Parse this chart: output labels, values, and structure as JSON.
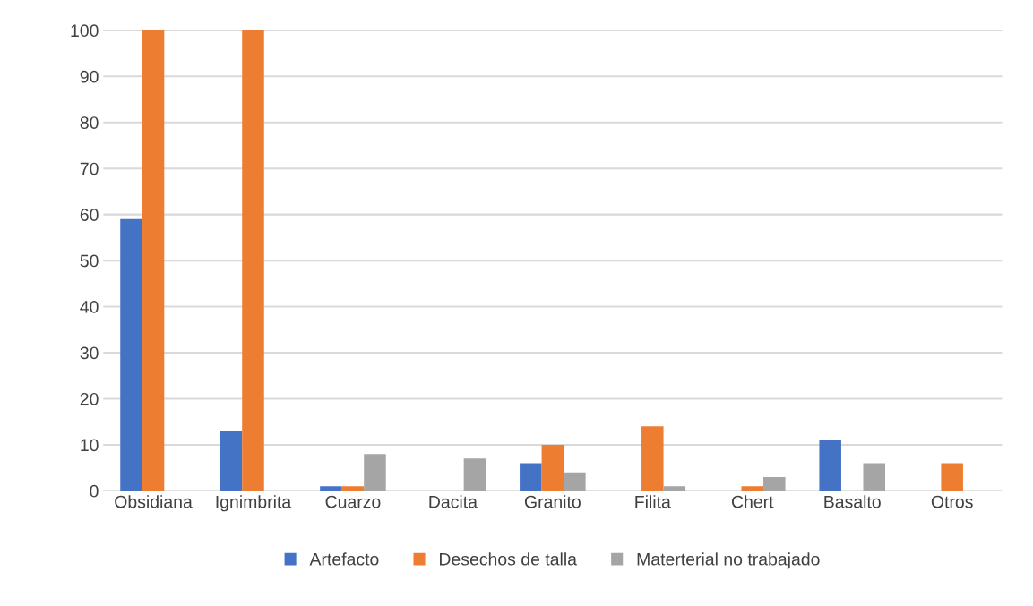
{
  "chart_data": {
    "type": "bar",
    "categories": [
      "Obsidiana",
      "Ignimbrita",
      "Cuarzo",
      "Dacita",
      "Granito",
      "Filita",
      "Chert",
      "Basalto",
      "Otros"
    ],
    "series": [
      {
        "name": "Artefacto",
        "color": "#4472c4",
        "values": [
          59,
          13,
          1,
          0,
          6,
          0,
          0,
          11,
          0
        ]
      },
      {
        "name": "Desechos de talla",
        "color": "#ed7d31",
        "values": [
          100,
          100,
          1,
          0,
          10,
          14,
          1,
          0,
          6
        ]
      },
      {
        "name": "Materterial no trabajado",
        "color": "#a5a5a5",
        "values": [
          0,
          0,
          8,
          7,
          4,
          1,
          3,
          6,
          0
        ]
      }
    ],
    "ylim": [
      0,
      100
    ],
    "yticks": [
      0,
      10,
      20,
      30,
      40,
      50,
      60,
      70,
      80,
      90,
      100
    ],
    "grid": "y",
    "legend": "bottom"
  }
}
